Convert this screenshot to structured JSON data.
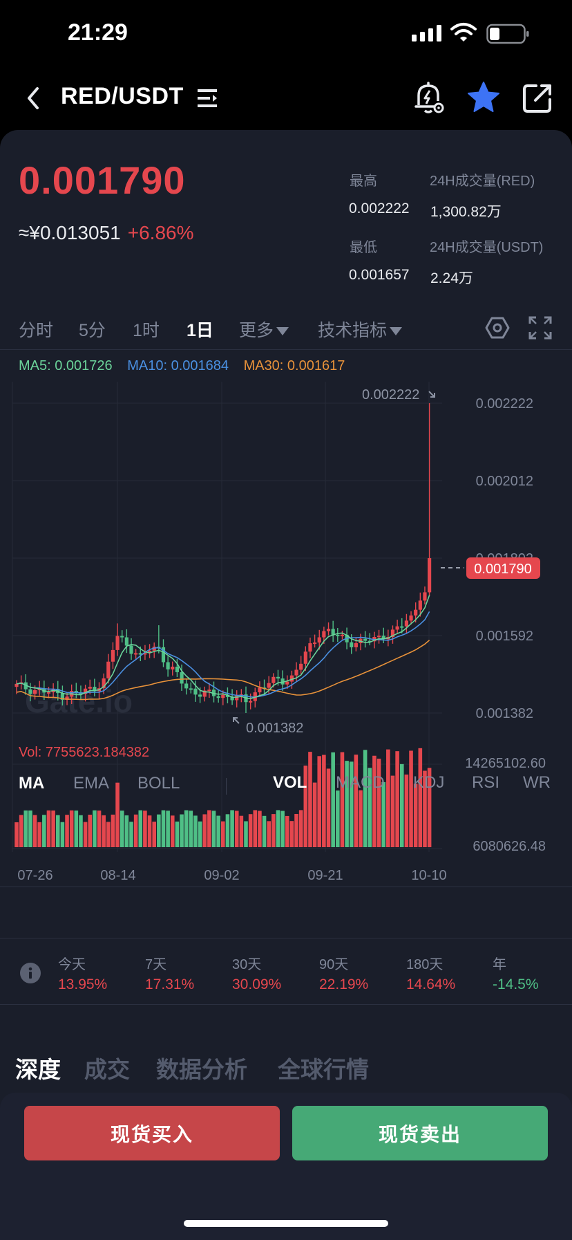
{
  "status_bar": {
    "time": "21:29"
  },
  "header": {
    "pair": "RED/USDT"
  },
  "ticker": {
    "last_price": "0.001790",
    "cny_approx": "≈¥0.013051",
    "change": "+6.86%",
    "high_label": "最高",
    "high_value": "0.002222",
    "low_label": "最低",
    "low_value": "0.001657",
    "vol_base_label": "24H成交量(RED)",
    "vol_base_value": "1,300.82万",
    "vol_quote_label": "24H成交量(USDT)",
    "vol_quote_value": "2.24万"
  },
  "timeframes": [
    {
      "label": "分时",
      "active": false
    },
    {
      "label": "5分",
      "active": false
    },
    {
      "label": "1时",
      "active": false
    },
    {
      "label": "1日",
      "active": true
    }
  ],
  "more_label": "更多",
  "indicators_label": "技术指标",
  "ma_legend": {
    "ma5": "MA5: 0.001726",
    "ma10": "MA10: 0.001684",
    "ma30": "MA30: 0.001617"
  },
  "vol_legend": "Vol: 7755623.184382",
  "watermark": "Gate.io",
  "colors": {
    "up": "#e5474e",
    "down": "#4fbf86",
    "ma5": "#6bd39a",
    "ma10": "#4a90e2",
    "ma30": "#e8923a"
  },
  "chart_data": {
    "type": "candlestick",
    "price_axis_ticks": [
      "0.002222",
      "0.002012",
      "0.001802",
      "0.001592",
      "0.001382"
    ],
    "price_range": [
      0.001382,
      0.002222
    ],
    "volume_axis_ticks": [
      "14265102.60",
      "6080626.48"
    ],
    "x_ticks": [
      "07-26",
      "08-14",
      "09-02",
      "09-21",
      "10-10"
    ],
    "max_marker": "0.002222",
    "min_marker": "0.001382",
    "current_price_tag": "0.001790"
  },
  "indicator_tabs": {
    "main": [
      "MA",
      "EMA",
      "BOLL"
    ],
    "sub": [
      "VOL",
      "MACD",
      "KDJ",
      "RSI",
      "WR"
    ]
  },
  "performance": [
    {
      "label": "今天",
      "value": "13.95%",
      "dir": "up"
    },
    {
      "label": "7天",
      "value": "17.31%",
      "dir": "up"
    },
    {
      "label": "30天",
      "value": "30.09%",
      "dir": "up"
    },
    {
      "label": "90天",
      "value": "22.19%",
      "dir": "up"
    },
    {
      "label": "180天",
      "value": "14.64%",
      "dir": "up"
    },
    {
      "label": "年",
      "value": "-14.5%",
      "dir": "down"
    }
  ],
  "bottom_tabs": [
    "深度",
    "成交",
    "数据分析",
    "全球行情"
  ],
  "actions": {
    "buy": "现货买入",
    "sell": "现货卖出"
  }
}
